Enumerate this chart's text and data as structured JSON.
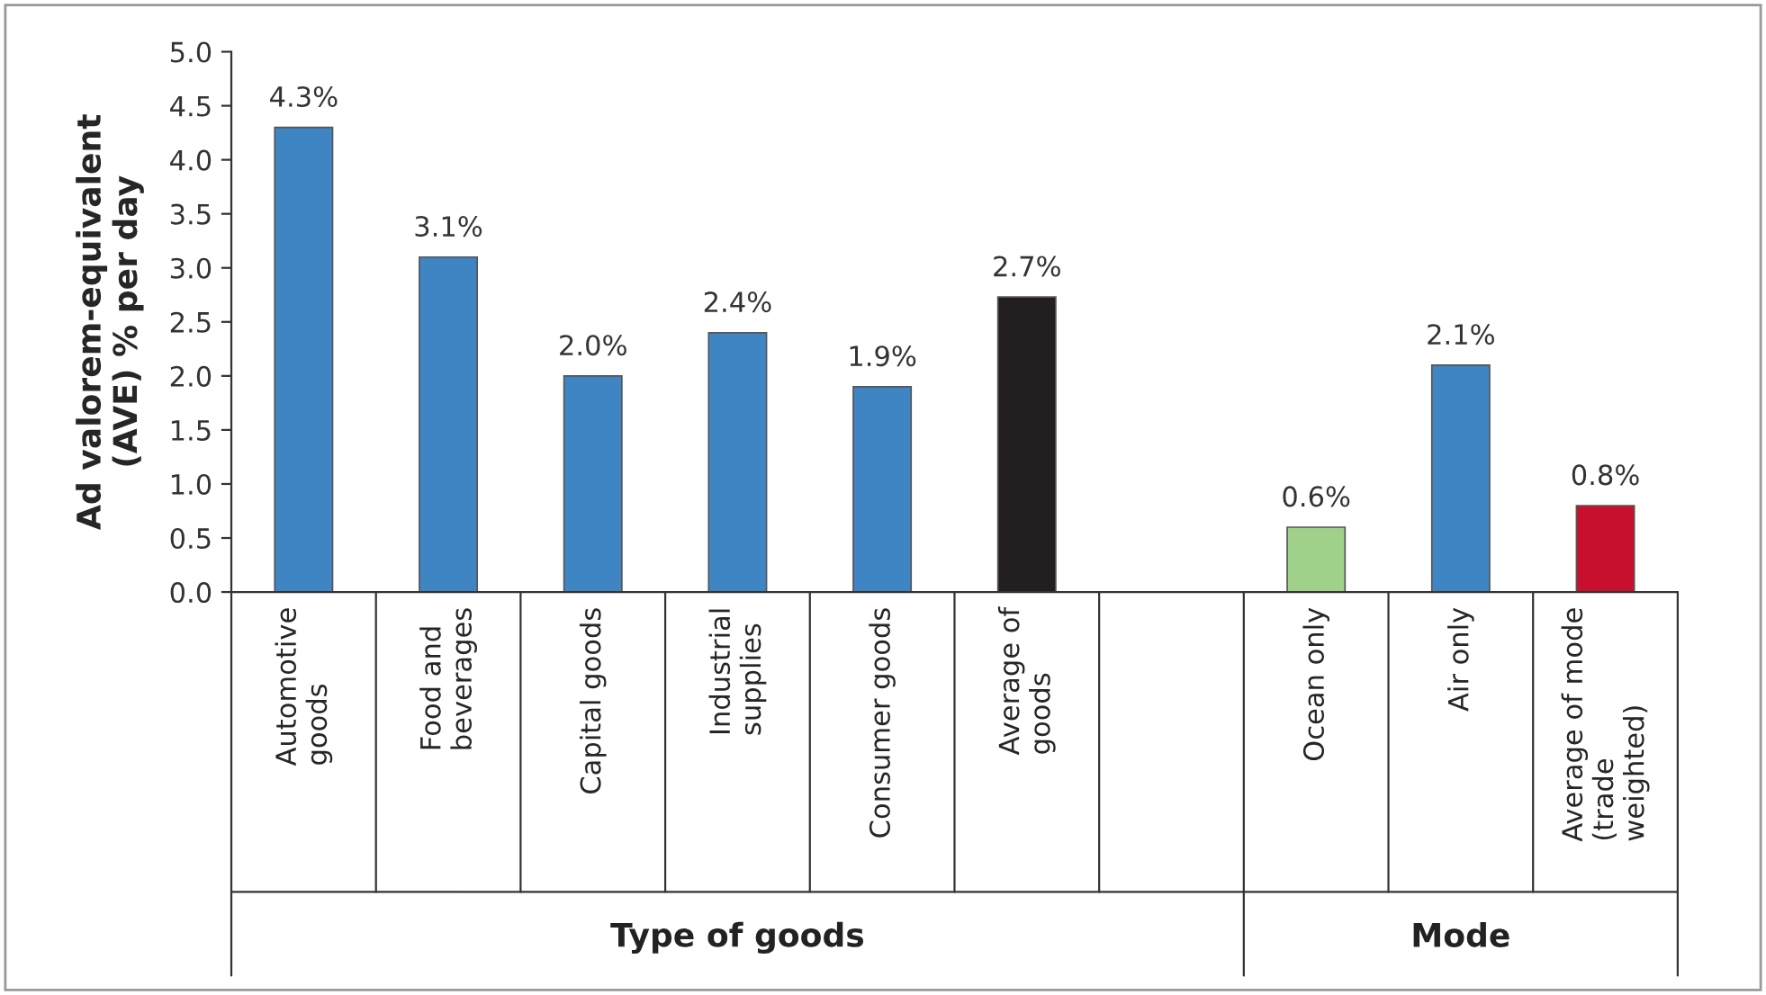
{
  "chart_data": {
    "type": "bar",
    "ylabel": "Ad valorem-equivalent\n(AVE) % per day",
    "categories": [
      "Automotive goods",
      "Food and beverages",
      "Capital goods",
      "Industrial supplies",
      "Consumer goods",
      "Average of goods",
      null,
      "Ocean only",
      "Air only",
      "Average of mode (trade weighted)"
    ],
    "values": [
      4.3,
      3.1,
      2.0,
      2.4,
      1.9,
      2.73,
      null,
      0.6,
      2.1,
      0.8
    ],
    "value_labels": [
      "4.3%",
      "3.1%",
      "2.0%",
      "2.4%",
      "1.9%",
      "2.7%",
      null,
      "0.6%",
      "2.1%",
      "0.8%"
    ],
    "colors": [
      "#3f85c4",
      "#3f85c4",
      "#3f85c4",
      "#3f85c4",
      "#3f85c4",
      "#231f20",
      null,
      "#9fd18b",
      "#3f85c4",
      "#c8102e"
    ],
    "ylim": [
      0,
      5
    ],
    "yticks": [
      {
        "value": 0,
        "label": "0.0"
      },
      {
        "value": 0.5,
        "label": "0.5"
      },
      {
        "value": 1,
        "label": "1.0"
      },
      {
        "value": 1.5,
        "label": "1.5"
      },
      {
        "value": 2,
        "label": "2.0"
      },
      {
        "value": 2.5,
        "label": "2.5"
      },
      {
        "value": 3,
        "label": "3.0"
      },
      {
        "value": 3.5,
        "label": "3.5"
      },
      {
        "value": 4,
        "label": "4.0"
      },
      {
        "value": 4.5,
        "label": "4.5"
      },
      {
        "value": 5,
        "label": "5.0"
      }
    ],
    "annotations": [
      "Type of goods",
      "Mode"
    ],
    "grid": false,
    "legend": false
  }
}
